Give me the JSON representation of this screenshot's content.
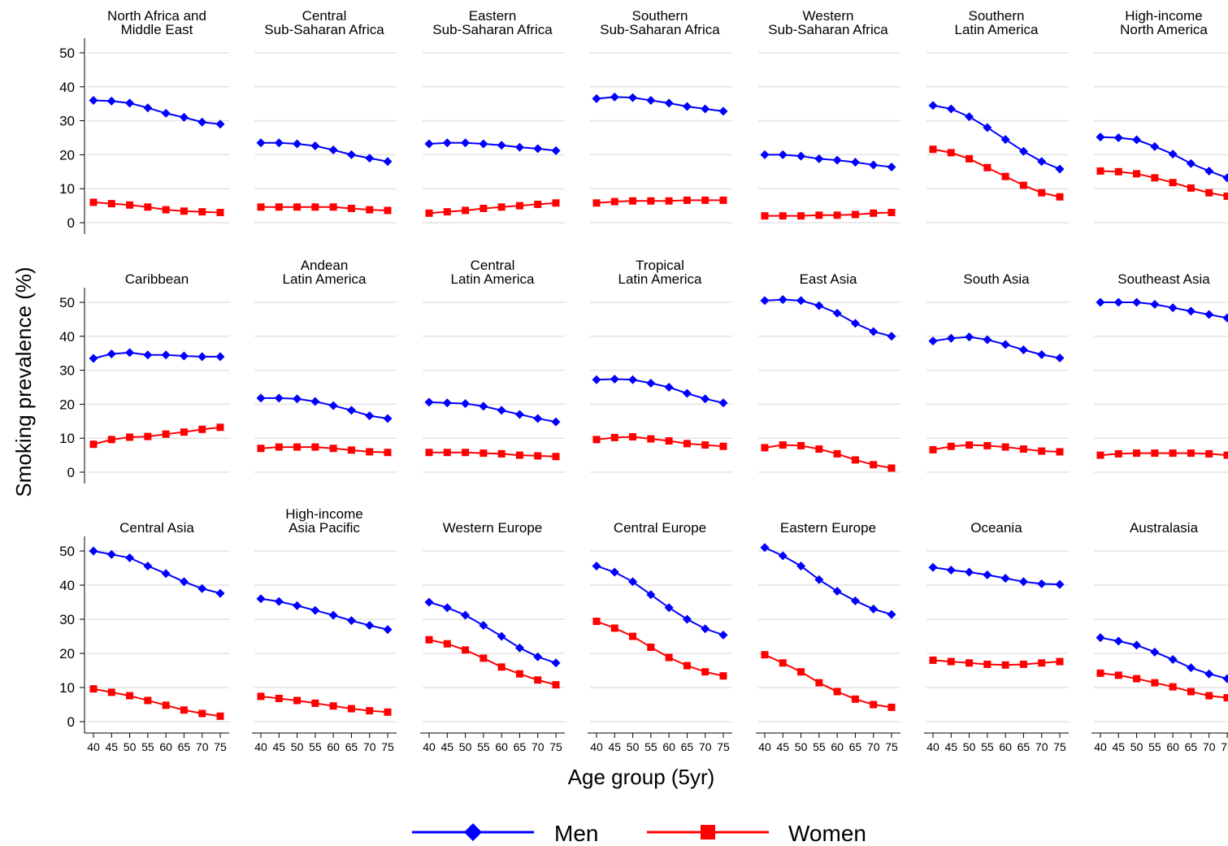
{
  "chart_data": {
    "type": "line",
    "ylabel": "Smoking prevalence (%)",
    "xlabel": "Age group (5yr)",
    "x": [
      40,
      45,
      50,
      55,
      60,
      65,
      70,
      75
    ],
    "ylim": [
      0,
      50
    ],
    "yticks": [
      0,
      10,
      20,
      30,
      40,
      50
    ],
    "grid": true,
    "legend_position": "bottom",
    "legend": [
      {
        "name": "Men",
        "color": "#0000ff",
        "marker": "diamond"
      },
      {
        "name": "Women",
        "color": "#ff0000",
        "marker": "square"
      }
    ],
    "panels": [
      {
        "title": [
          "North Africa and",
          "Middle East"
        ],
        "men": [
          36,
          35.8,
          35.2,
          33.8,
          32.2,
          31,
          29.6,
          29
        ],
        "women": [
          6,
          5.6,
          5.2,
          4.6,
          3.8,
          3.4,
          3.2,
          3
        ]
      },
      {
        "title": [
          "Central",
          "Sub-Saharan Africa"
        ],
        "men": [
          23.5,
          23.5,
          23.2,
          22.6,
          21.4,
          20,
          19,
          18
        ],
        "women": [
          4.6,
          4.6,
          4.6,
          4.6,
          4.6,
          4.2,
          3.8,
          3.6
        ]
      },
      {
        "title": [
          "Eastern",
          "Sub-Saharan Africa"
        ],
        "men": [
          23.2,
          23.5,
          23.5,
          23.2,
          22.8,
          22.2,
          21.8,
          21.2
        ],
        "women": [
          2.8,
          3.2,
          3.6,
          4.2,
          4.6,
          5,
          5.4,
          5.8
        ]
      },
      {
        "title": [
          "Southern",
          "Sub-Saharan Africa"
        ],
        "men": [
          36.5,
          37,
          36.8,
          36,
          35.2,
          34.2,
          33.5,
          32.8
        ],
        "women": [
          5.8,
          6.2,
          6.4,
          6.4,
          6.4,
          6.6,
          6.6,
          6.6
        ]
      },
      {
        "title": [
          "Western",
          "Sub-Saharan Africa"
        ],
        "men": [
          20,
          20,
          19.6,
          18.8,
          18.4,
          17.8,
          17,
          16.4
        ],
        "women": [
          2,
          2,
          2,
          2.2,
          2.2,
          2.4,
          2.8,
          3
        ]
      },
      {
        "title": [
          "Southern",
          "Latin America"
        ],
        "men": [
          34.5,
          33.5,
          31.2,
          28,
          24.5,
          21,
          18,
          15.8
        ],
        "women": [
          21.6,
          20.6,
          18.8,
          16.2,
          13.6,
          11,
          8.8,
          7.6
        ]
      },
      {
        "title": [
          "High-income",
          "North America"
        ],
        "men": [
          25.2,
          25,
          24.4,
          22.4,
          20.2,
          17.4,
          15.2,
          13.2
        ],
        "women": [
          15.2,
          15,
          14.4,
          13.2,
          11.8,
          10.2,
          8.8,
          7.8
        ]
      },
      {
        "title": [
          "Caribbean"
        ],
        "men": [
          33.5,
          34.8,
          35.2,
          34.5,
          34.5,
          34.2,
          34,
          34
        ],
        "women": [
          8.2,
          9.6,
          10.3,
          10.5,
          11.2,
          11.8,
          12.6,
          13.2
        ]
      },
      {
        "title": [
          "Andean",
          "Latin America"
        ],
        "men": [
          21.8,
          21.8,
          21.6,
          20.8,
          19.6,
          18.2,
          16.6,
          15.8
        ],
        "women": [
          7,
          7.4,
          7.4,
          7.4,
          7,
          6.5,
          6,
          5.8
        ]
      },
      {
        "title": [
          "Central",
          "Latin America"
        ],
        "men": [
          20.6,
          20.4,
          20.2,
          19.4,
          18.2,
          17,
          15.8,
          14.8
        ],
        "women": [
          5.8,
          5.8,
          5.8,
          5.6,
          5.4,
          5,
          4.8,
          4.6
        ]
      },
      {
        "title": [
          "Tropical",
          "Latin America"
        ],
        "men": [
          27.2,
          27.4,
          27.2,
          26.2,
          25,
          23.2,
          21.6,
          20.4
        ],
        "women": [
          9.6,
          10.2,
          10.4,
          9.8,
          9.2,
          8.4,
          8,
          7.6
        ]
      },
      {
        "title": [
          "East Asia"
        ],
        "men": [
          50.5,
          50.8,
          50.5,
          49,
          46.8,
          43.8,
          41.4,
          40
        ],
        "women": [
          7.2,
          8,
          7.8,
          6.8,
          5.4,
          3.6,
          2.2,
          1.2
        ]
      },
      {
        "title": [
          "South Asia"
        ],
        "men": [
          38.6,
          39.4,
          39.8,
          39,
          37.6,
          36,
          34.6,
          33.6
        ],
        "women": [
          6.6,
          7.6,
          8,
          7.8,
          7.4,
          6.8,
          6.2,
          6
        ]
      },
      {
        "title": [
          "Southeast Asia"
        ],
        "men": [
          50,
          50,
          50,
          49.4,
          48.4,
          47.4,
          46.4,
          45.4
        ],
        "women": [
          5,
          5.4,
          5.6,
          5.6,
          5.6,
          5.6,
          5.4,
          5
        ]
      },
      {
        "title": [
          "Central Asia"
        ],
        "men": [
          50,
          49,
          48,
          45.6,
          43.4,
          41,
          39,
          37.6
        ],
        "women": [
          9.6,
          8.6,
          7.6,
          6.2,
          4.8,
          3.4,
          2.4,
          1.6
        ]
      },
      {
        "title": [
          "High-income",
          "Asia Pacific"
        ],
        "men": [
          36,
          35.2,
          34,
          32.6,
          31.2,
          29.6,
          28.2,
          27
        ],
        "women": [
          7.4,
          6.8,
          6.2,
          5.4,
          4.6,
          3.8,
          3.2,
          2.8
        ]
      },
      {
        "title": [
          "Western Europe"
        ],
        "men": [
          35,
          33.4,
          31.2,
          28.2,
          25,
          21.6,
          19,
          17.2
        ],
        "women": [
          24,
          22.8,
          21,
          18.6,
          16,
          14,
          12.2,
          10.8
        ]
      },
      {
        "title": [
          "Central Europe"
        ],
        "men": [
          45.6,
          43.8,
          41,
          37.2,
          33.4,
          30,
          27.2,
          25.4
        ],
        "women": [
          29.4,
          27.4,
          25,
          21.8,
          18.8,
          16.4,
          14.6,
          13.4
        ]
      },
      {
        "title": [
          "Eastern Europe"
        ],
        "men": [
          51,
          48.6,
          45.6,
          41.6,
          38.2,
          35.4,
          33,
          31.4
        ],
        "women": [
          19.6,
          17.2,
          14.6,
          11.4,
          8.8,
          6.6,
          5,
          4.2
        ]
      },
      {
        "title": [
          "Oceania"
        ],
        "men": [
          45.2,
          44.4,
          43.8,
          43,
          42,
          41,
          40.4,
          40.2
        ],
        "women": [
          18,
          17.6,
          17.2,
          16.8,
          16.6,
          16.8,
          17.2,
          17.6
        ]
      },
      {
        "title": [
          "Australasia"
        ],
        "men": [
          24.6,
          23.6,
          22.4,
          20.4,
          18.2,
          15.8,
          14,
          12.6
        ],
        "women": [
          14.2,
          13.6,
          12.6,
          11.4,
          10.2,
          8.8,
          7.6,
          7
        ]
      }
    ]
  }
}
